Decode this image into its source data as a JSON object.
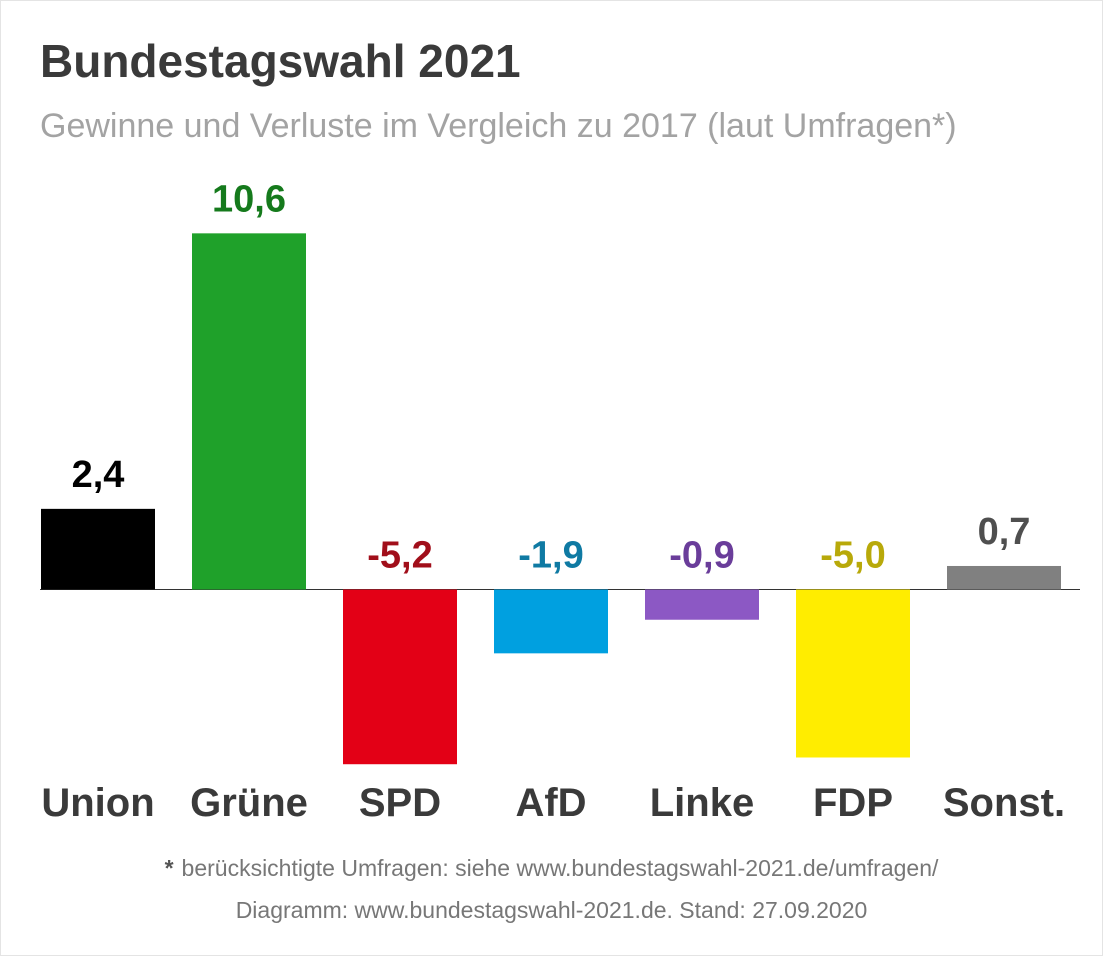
{
  "chart_data": {
    "type": "bar",
    "title": "Bundestagswahl 2021",
    "subtitle": "Gewinne und Verluste im Vergleich zu 2017 (laut Umfragen*)",
    "categories": [
      "Union",
      "Grüne",
      "SPD",
      "AfD",
      "Linke",
      "FDP",
      "Sonst."
    ],
    "values": [
      2.4,
      10.6,
      -5.2,
      -1.9,
      -0.9,
      -5.0,
      0.7
    ],
    "value_labels": [
      "2,4",
      "10,6",
      "-5,2",
      "-1,9",
      "-0,9",
      "-5,0",
      "0,7"
    ],
    "bar_colors": [
      "#000000",
      "#1fa12a",
      "#e30016",
      "#00a0e0",
      "#8c58c4",
      "#ffed00",
      "#808080"
    ],
    "label_colors": [
      "#000000",
      "#157a1c",
      "#a10e1a",
      "#0f7aa3",
      "#6a3d9a",
      "#b8a90a",
      "#4f4f4f"
    ],
    "ylim": [
      -5.2,
      10.6
    ],
    "grid": false,
    "legend": "none",
    "xlabel": "",
    "ylabel": ""
  },
  "footnote": {
    "star": "*",
    "sources": "berücksichtigte Umfragen: siehe www.bundestagswahl-2021.de/umfragen/",
    "credit": "Diagramm: www.bundestagswahl-2021.de. Stand: 27.09.2020"
  }
}
